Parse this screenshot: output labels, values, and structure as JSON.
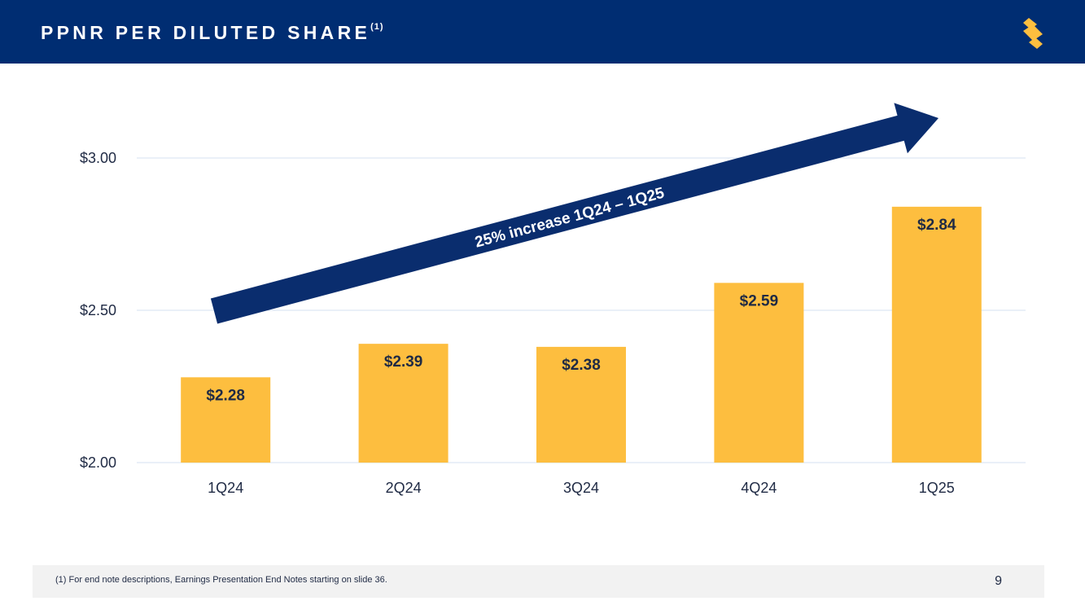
{
  "header": {
    "title": "PPNR PER DILUTED SHARE",
    "title_superscript": "(1)",
    "logo_icon": "brand-s-logo-icon"
  },
  "colors": {
    "header_bg": "#002d72",
    "bar": "#fdbe3f",
    "arrow": "#0a2d6e",
    "gridline": "#d6e2f0",
    "axis_text": "#1f2a44",
    "logo": "#fdbe3f"
  },
  "chart_data": {
    "type": "bar",
    "title": "PPNR PER DILUTED SHARE",
    "categories": [
      "1Q24",
      "2Q24",
      "3Q24",
      "4Q24",
      "1Q25"
    ],
    "values": [
      2.28,
      2.39,
      2.38,
      2.59,
      2.84
    ],
    "data_labels": [
      "$2.28",
      "$2.39",
      "$2.38",
      "$2.59",
      "$2.84"
    ],
    "ylim": [
      2.0,
      3.0
    ],
    "yticks": [
      2.0,
      2.5,
      3.0
    ],
    "ytick_labels": [
      "$2.00",
      "$2.50",
      "$3.00"
    ],
    "xlabel": "",
    "ylabel": "",
    "grid": true,
    "annotation": "25% increase 1Q24 – 1Q25"
  },
  "footer": {
    "footnote": "(1)  For end note descriptions, Earnings Presentation End Notes starting on slide 36.",
    "page_number": "9"
  }
}
